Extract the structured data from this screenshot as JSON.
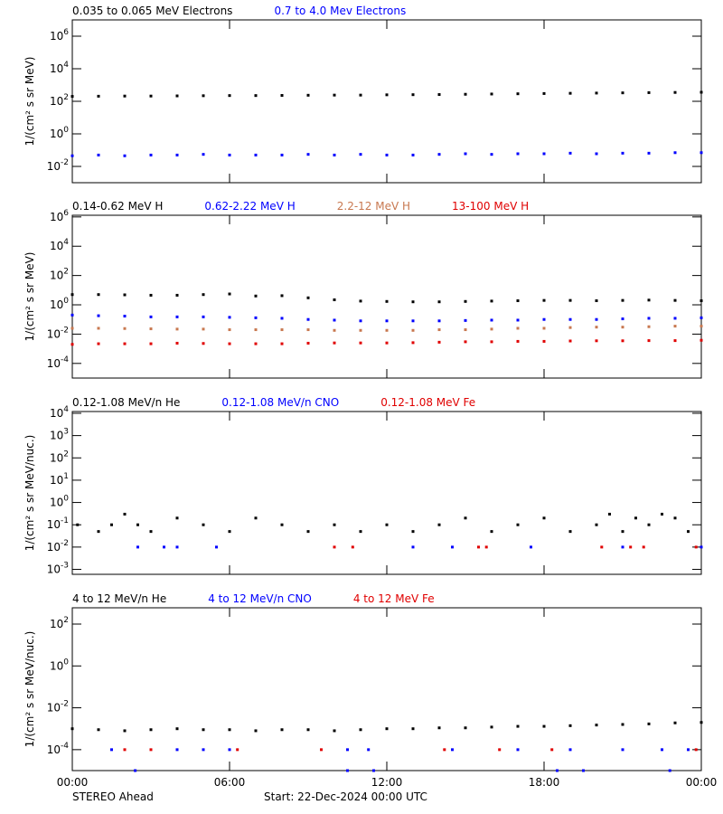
{
  "chart_data": [
    {
      "type": "scatter",
      "ylabel": "1/(cm² s sr MeV)",
      "log_y": true,
      "xlim": [
        0,
        24
      ],
      "ylim": [
        0.001,
        10000000
      ],
      "yticks": [
        {
          "value": 0.01,
          "label": "10^-2"
        },
        {
          "value": 1,
          "label": "10^0"
        },
        {
          "value": 100,
          "label": "10^2"
        },
        {
          "value": 10000,
          "label": "10^4"
        },
        {
          "value": 1000000,
          "label": "10^6"
        }
      ],
      "x": [
        0,
        1,
        2,
        3,
        4,
        5,
        6,
        7,
        8,
        9,
        10,
        11,
        12,
        13,
        14,
        15,
        16,
        17,
        18,
        19,
        20,
        21,
        22,
        23,
        24
      ],
      "series": [
        {
          "name": "0.035 to 0.065 MeV Electrons",
          "color": "#000000",
          "values": [
            200,
            205,
            210,
            210,
            215,
            220,
            225,
            225,
            230,
            235,
            240,
            240,
            250,
            255,
            260,
            270,
            280,
            290,
            300,
            310,
            320,
            330,
            340,
            350,
            360
          ]
        },
        {
          "name": "0.7 to 4.0 Mev Electrons",
          "color": "#0000ff",
          "values": [
            0.045,
            0.05,
            0.045,
            0.05,
            0.05,
            0.055,
            0.05,
            0.05,
            0.05,
            0.055,
            0.05,
            0.055,
            0.05,
            0.05,
            0.055,
            0.06,
            0.055,
            0.06,
            0.06,
            0.065,
            0.06,
            0.065,
            0.065,
            0.07,
            0.07
          ]
        }
      ]
    },
    {
      "type": "scatter",
      "ylabel": "1/(cm² s sr MeV)",
      "log_y": true,
      "xlim": [
        0,
        24
      ],
      "ylim": [
        1e-05,
        1300000
      ],
      "yticks": [
        {
          "value": 0.0001,
          "label": "10^-4"
        },
        {
          "value": 0.01,
          "label": "10^-2"
        },
        {
          "value": 1,
          "label": "10^0"
        },
        {
          "value": 100,
          "label": "10^2"
        },
        {
          "value": 10000,
          "label": "10^4"
        },
        {
          "value": 1000000,
          "label": "10^6"
        }
      ],
      "x": [
        0,
        1,
        2,
        3,
        4,
        5,
        6,
        7,
        8,
        9,
        10,
        11,
        12,
        13,
        14,
        15,
        16,
        17,
        18,
        19,
        20,
        21,
        22,
        23,
        24
      ],
      "series": [
        {
          "name": "0.14-0.62 MeV H",
          "color": "#000000",
          "values": [
            5,
            5,
            4.8,
            4.5,
            4.5,
            5,
            5.5,
            4,
            4.2,
            3,
            2.2,
            1.8,
            1.7,
            1.6,
            1.6,
            1.7,
            1.8,
            1.9,
            2,
            2,
            1.9,
            2,
            2.1,
            2,
            1.9
          ]
        },
        {
          "name": "0.62-2.22 MeV H",
          "color": "#0000ff",
          "values": [
            0.2,
            0.18,
            0.17,
            0.15,
            0.15,
            0.15,
            0.14,
            0.13,
            0.12,
            0.1,
            0.09,
            0.08,
            0.08,
            0.08,
            0.08,
            0.085,
            0.09,
            0.09,
            0.1,
            0.1,
            0.1,
            0.11,
            0.12,
            0.12,
            0.13
          ]
        },
        {
          "name": "2.2-12 MeV H",
          "color": "#c87850",
          "values": [
            0.025,
            0.025,
            0.024,
            0.023,
            0.022,
            0.022,
            0.02,
            0.02,
            0.02,
            0.02,
            0.018,
            0.018,
            0.018,
            0.018,
            0.02,
            0.02,
            0.022,
            0.025,
            0.025,
            0.028,
            0.03,
            0.03,
            0.032,
            0.035,
            0.035
          ]
        },
        {
          "name": "13-100 MeV H",
          "color": "#e00000",
          "values": [
            0.002,
            0.0022,
            0.0022,
            0.0022,
            0.0024,
            0.0023,
            0.0022,
            0.0022,
            0.0022,
            0.0024,
            0.0025,
            0.0025,
            0.0025,
            0.0026,
            0.0028,
            0.003,
            0.003,
            0.0032,
            0.0032,
            0.0034,
            0.0035,
            0.0035,
            0.0036,
            0.0036,
            0.0038
          ]
        }
      ]
    },
    {
      "type": "scatter",
      "ylabel": "1/(cm² s sr MeV/nuc.)",
      "log_y": true,
      "xlim": [
        0,
        24
      ],
      "ylim": [
        0.0006,
        12000
      ],
      "yticks": [
        {
          "value": 0.001,
          "label": "10^-3"
        },
        {
          "value": 0.01,
          "label": "10^-2"
        },
        {
          "value": 0.1,
          "label": "10^-1"
        },
        {
          "value": 1,
          "label": "10^0"
        },
        {
          "value": 10,
          "label": "10^1"
        },
        {
          "value": 100,
          "label": "10^2"
        },
        {
          "value": 1000,
          "label": "10^3"
        },
        {
          "value": 10000,
          "label": "10^4"
        }
      ],
      "series": [
        {
          "name": "0.12-1.08 MeV/n He",
          "color": "#000000",
          "x": [
            0.2,
            1,
            1.5,
            2,
            2.5,
            3,
            4,
            5,
            6,
            7,
            8,
            9,
            10,
            11,
            12,
            13,
            14,
            15,
            16,
            17,
            18,
            19,
            20,
            20.5,
            21,
            21.5,
            22,
            22.5,
            23,
            23.5
          ],
          "values": [
            0.1,
            0.05,
            0.1,
            0.3,
            0.1,
            0.05,
            0.2,
            0.1,
            0.05,
            0.2,
            0.1,
            0.05,
            0.1,
            0.05,
            0.1,
            0.05,
            0.1,
            0.2,
            0.05,
            0.1,
            0.2,
            0.05,
            0.1,
            0.3,
            0.05,
            0.2,
            0.1,
            0.3,
            0.2,
            0.05
          ]
        },
        {
          "name": "0.12-1.08 MeV/n CNO",
          "color": "#0000ff",
          "x": [
            2.5,
            3.5,
            4,
            5.5,
            13,
            14.5,
            17.5,
            21,
            24
          ],
          "values": [
            0.01,
            0.01,
            0.01,
            0.01,
            0.01,
            0.01,
            0.01,
            0.01,
            0.01
          ]
        },
        {
          "name": "0.12-1.08 MeV Fe",
          "color": "#e00000",
          "x": [
            10,
            10.7,
            15.5,
            15.8,
            20.2,
            21.3,
            21.8,
            23.8
          ],
          "values": [
            0.01,
            0.01,
            0.01,
            0.01,
            0.01,
            0.01,
            0.01,
            0.01
          ]
        }
      ]
    },
    {
      "type": "scatter",
      "ylabel": "1/(cm² s sr MeV/nuc.)",
      "log_y": true,
      "xlim": [
        0,
        24
      ],
      "ylim": [
        1e-05,
        600
      ],
      "xticks": [
        {
          "value": 0,
          "label": "00:00"
        },
        {
          "value": 6,
          "label": "06:00"
        },
        {
          "value": 12,
          "label": "12:00"
        },
        {
          "value": 18,
          "label": "18:00"
        },
        {
          "value": 24,
          "label": "00:00"
        }
      ],
      "yticks": [
        {
          "value": 0.0001,
          "label": "10^-4"
        },
        {
          "value": 0.01,
          "label": "10^-2"
        },
        {
          "value": 1,
          "label": "10^0"
        },
        {
          "value": 100,
          "label": "10^2"
        }
      ],
      "series": [
        {
          "name": "4 to 12 MeV/n He",
          "color": "#000000",
          "x": [
            0,
            1,
            2,
            3,
            4,
            5,
            6,
            7,
            8,
            9,
            10,
            11,
            12,
            13,
            14,
            15,
            16,
            17,
            18,
            19,
            20,
            21,
            22,
            23,
            24
          ],
          "values": [
            0.001,
            0.0009,
            0.0008,
            0.0009,
            0.001,
            0.0009,
            0.0009,
            0.0008,
            0.0009,
            0.0009,
            0.0008,
            0.0009,
            0.001,
            0.001,
            0.0011,
            0.0011,
            0.0012,
            0.0013,
            0.0013,
            0.0014,
            0.0015,
            0.0016,
            0.0017,
            0.0019,
            0.002
          ]
        },
        {
          "name": "4 to 12 MeV/n CNO",
          "color": "#0000ff",
          "x": [
            1.5,
            4,
            5,
            6,
            10.5,
            11.3,
            14.5,
            17,
            19,
            21,
            22.5,
            23.5,
            2.4,
            10.5,
            11.5,
            18.5,
            19.5,
            22.8
          ],
          "values": [
            0.0001,
            0.0001,
            0.0001,
            0.0001,
            0.0001,
            0.0001,
            0.0001,
            0.0001,
            0.0001,
            0.0001,
            0.0001,
            0.0001,
            1e-05,
            1e-05,
            1e-05,
            1e-05,
            1e-05,
            1e-05
          ]
        },
        {
          "name": "4 to 12 MeV Fe",
          "color": "#e00000",
          "x": [
            2,
            3,
            6.3,
            9.5,
            14.2,
            16.3,
            18.3,
            23.8
          ],
          "values": [
            0.0001,
            0.0001,
            0.0001,
            0.0001,
            0.0001,
            0.0001,
            0.0001,
            0.0001
          ]
        }
      ]
    }
  ],
  "footer": {
    "left": "STEREO Ahead",
    "center": "Start: 22-Dec-2024 00:00 UTC"
  }
}
